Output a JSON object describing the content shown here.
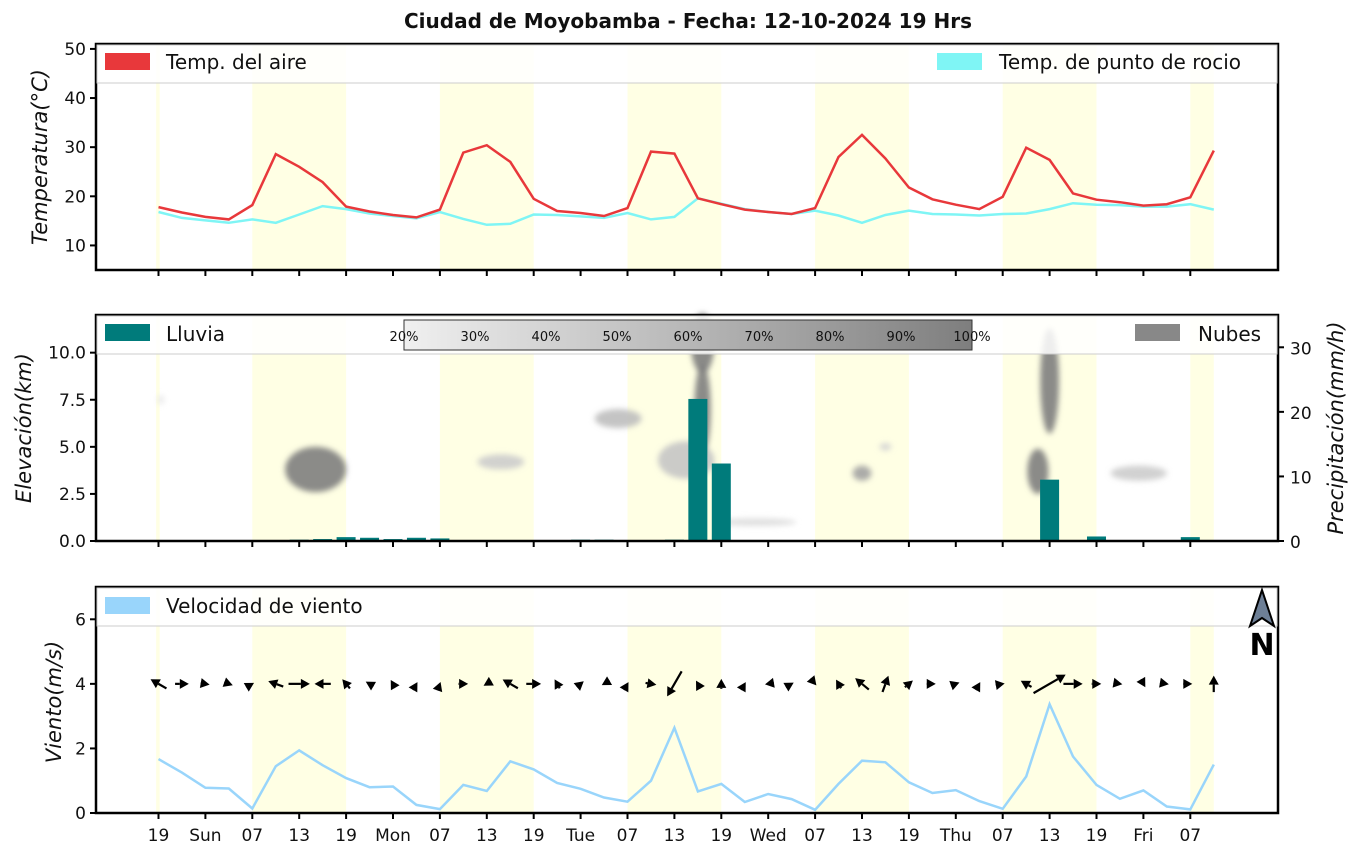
{
  "title": "Ciudad de Moyobamba   -   Fecha: 12-10-2024 19 Hrs",
  "colors": {
    "temp_air": "#e8383b",
    "dew_point": "#7ff5f5",
    "rain": "#007b7b",
    "clouds": "#888888",
    "wind_speed": "#99d5fb",
    "daylight_band": "#ffffe4"
  },
  "x_tick_labels": [
    "19",
    "Sun",
    "07",
    "13",
    "19",
    "Mon",
    "07",
    "13",
    "19",
    "Tue",
    "07",
    "13",
    "19",
    "Wed",
    "07",
    "13",
    "19",
    "Thu",
    "07",
    "13",
    "19",
    "Fri",
    "07"
  ],
  "north_label": "N",
  "north_icon": "north-arrow-icon",
  "chart_data": [
    {
      "type": "line",
      "name": "temperature",
      "ylabel": "Temperatura(°C)",
      "ylim": [
        5,
        51
      ],
      "y_ticks": [
        10,
        20,
        30,
        40,
        50
      ],
      "legend": [
        "Temp. del aire",
        "Temp. de punto de rocio"
      ],
      "series": [
        {
          "name": "Temp. del aire",
          "values": [
            17.8,
            16.7,
            15.8,
            15.3,
            18.2,
            28.6,
            26.0,
            22.9,
            17.9,
            16.9,
            16.2,
            15.7,
            17.3,
            28.9,
            30.4,
            27.0,
            19.5,
            17.0,
            16.6,
            16.0,
            17.6,
            29.1,
            28.7,
            19.6,
            18.4,
            17.3,
            16.8,
            16.4,
            17.6,
            28.0,
            32.5,
            27.7,
            21.8,
            19.4,
            18.3,
            17.4,
            19.9,
            29.9,
            27.4,
            20.6,
            19.3,
            18.8,
            18.1,
            18.4,
            19.8,
            29.3
          ]
        },
        {
          "name": "Temp. de punto de rocio",
          "values": [
            16.8,
            15.6,
            15.1,
            14.6,
            15.3,
            14.6,
            16.3,
            18.0,
            17.4,
            16.5,
            16.0,
            15.5,
            16.8,
            15.4,
            14.2,
            14.4,
            16.3,
            16.2,
            15.9,
            15.6,
            16.6,
            15.3,
            15.8,
            19.6,
            18.5,
            17.4,
            16.8,
            16.4,
            17.1,
            16.1,
            14.6,
            16.2,
            17.1,
            16.4,
            16.3,
            16.1,
            16.4,
            16.5,
            17.4,
            18.6,
            18.3,
            18.2,
            17.9,
            17.9,
            18.4,
            17.3
          ]
        }
      ]
    },
    {
      "type": "bar",
      "name": "rain-and-clouds",
      "ylabel": "Elevación(km)",
      "y2label": "Precipitación(mm/h)",
      "ylim": [
        0,
        12
      ],
      "y2lim": [
        0,
        35
      ],
      "y_ticks": [
        "0.0",
        "2.5",
        "5.0",
        "7.5",
        "10.0"
      ],
      "y2_ticks": [
        0,
        10,
        20,
        30
      ],
      "legend": [
        "Lluvia",
        "Nubes"
      ],
      "colorbar_ticks": [
        "20%",
        "30%",
        "40%",
        "50%",
        "60%",
        "70%",
        "80%",
        "90%",
        "100%"
      ],
      "series": [
        {
          "name": "Lluvia",
          "values": [
            0,
            0,
            0,
            0,
            0,
            0,
            0.2,
            0.3,
            0.6,
            0.5,
            0.3,
            0.5,
            0.4,
            0,
            0,
            0,
            0,
            0,
            0.2,
            0.2,
            0,
            0,
            0.2,
            22.0,
            12.0,
            0,
            0,
            0,
            0,
            0,
            0,
            0,
            0,
            0,
            0,
            0,
            0,
            0.1,
            9.5,
            0,
            0.7,
            0,
            0,
            0,
            0.6,
            0
          ]
        }
      ],
      "clouds": [
        {
          "hour_index": 0.1,
          "elev_km": 7.5,
          "cover_pct": 25,
          "rx": 0.15,
          "ry_km": 0.25
        },
        {
          "hour_index": 6.7,
          "elev_km": 3.8,
          "cover_pct": 100,
          "rx": 1.3,
          "ry_km": 1.2
        },
        {
          "hour_index": 14.6,
          "elev_km": 4.2,
          "cover_pct": 45,
          "rx": 1.0,
          "ry_km": 0.4
        },
        {
          "hour_index": 19.6,
          "elev_km": 6.5,
          "cover_pct": 55,
          "rx": 1.0,
          "ry_km": 0.5
        },
        {
          "hour_index": 22.5,
          "elev_km": 4.3,
          "cover_pct": 50,
          "rx": 1.2,
          "ry_km": 1.0
        },
        {
          "hour_index": 23.2,
          "elev_km": 10.5,
          "cover_pct": 100,
          "rx": 0.5,
          "ry_km": 1.6
        },
        {
          "hour_index": 23.2,
          "elev_km": 7.0,
          "cover_pct": 100,
          "rx": 0.35,
          "ry_km": 2.4
        },
        {
          "hour_index": 25.5,
          "elev_km": 1.0,
          "cover_pct": 35,
          "rx": 1.7,
          "ry_km": 0.2
        },
        {
          "hour_index": 30.0,
          "elev_km": 3.6,
          "cover_pct": 75,
          "rx": 0.4,
          "ry_km": 0.4
        },
        {
          "hour_index": 31.0,
          "elev_km": 5.0,
          "cover_pct": 40,
          "rx": 0.25,
          "ry_km": 0.2
        },
        {
          "hour_index": 37.5,
          "elev_km": 3.7,
          "cover_pct": 100,
          "rx": 0.45,
          "ry_km": 1.2
        },
        {
          "hour_index": 38.0,
          "elev_km": 8.5,
          "cover_pct": 100,
          "rx": 0.4,
          "ry_km": 2.8
        },
        {
          "hour_index": 41.8,
          "elev_km": 3.6,
          "cover_pct": 45,
          "rx": 1.2,
          "ry_km": 0.4
        }
      ]
    },
    {
      "type": "line",
      "name": "wind",
      "ylabel": "Viento(m/s)",
      "ylim": [
        0,
        7
      ],
      "y_ticks": [
        0,
        2,
        4,
        6
      ],
      "legend": [
        "Velocidad de viento"
      ],
      "series": [
        {
          "name": "Velocidad de viento",
          "values": [
            1.67,
            1.25,
            0.78,
            0.76,
            0.14,
            1.45,
            1.94,
            1.48,
            1.08,
            0.8,
            0.82,
            0.25,
            0.12,
            0.87,
            0.68,
            1.6,
            1.35,
            0.93,
            0.75,
            0.48,
            0.35,
            1.0,
            2.64,
            0.67,
            0.9,
            0.34,
            0.59,
            0.43,
            0.1,
            0.9,
            1.62,
            1.57,
            0.95,
            0.62,
            0.71,
            0.37,
            0.13,
            1.13,
            3.37,
            1.75,
            0.87,
            0.44,
            0.7,
            0.2,
            0.11,
            1.5
          ]
        }
      ],
      "wind_direction_deg": [
        300,
        90,
        100,
        110,
        60,
        290,
        90,
        270,
        320,
        300,
        330,
        30,
        20,
        90,
        240,
        300,
        90,
        330,
        50,
        240,
        30,
        100,
        210,
        330,
        0,
        30,
        260,
        60,
        140,
        330,
        310,
        20,
        50,
        90,
        70,
        30,
        80,
        300,
        60,
        90,
        90,
        100,
        150,
        100,
        90,
        0
      ]
    }
  ]
}
